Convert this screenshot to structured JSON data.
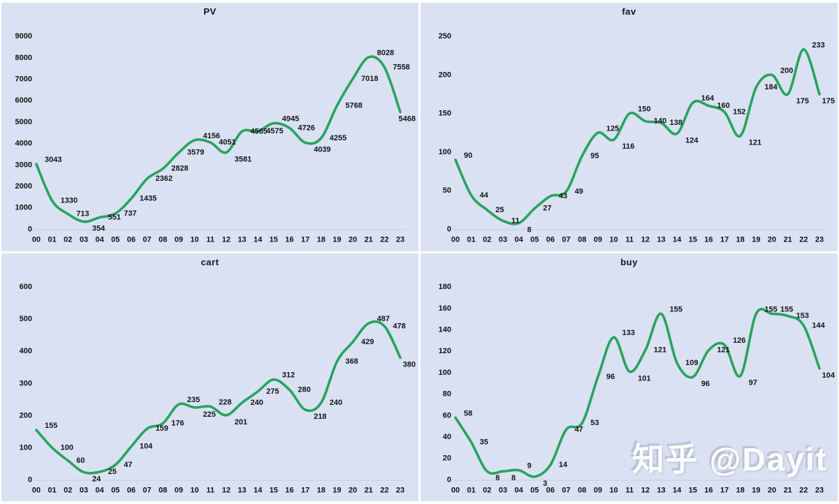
{
  "watermark": {
    "text": "知乎 @Dayit"
  },
  "colors": {
    "background": "#d9e1f2",
    "line": "#28a35f",
    "label": "#141414",
    "tick": "#111111",
    "axis": "#c3cbde",
    "divider": "#ffffff"
  },
  "chart_data": [
    {
      "id": "pv",
      "type": "line",
      "title": "PV",
      "categories": [
        "00",
        "01",
        "02",
        "03",
        "04",
        "05",
        "06",
        "07",
        "08",
        "09",
        "10",
        "11",
        "12",
        "13",
        "14",
        "15",
        "16",
        "17",
        "18",
        "19",
        "20",
        "21",
        "22",
        "23"
      ],
      "values": [
        3043,
        1330,
        713,
        354,
        551,
        737,
        1435,
        2362,
        2828,
        3579,
        4156,
        4051,
        3581,
        4565,
        4575,
        4945,
        4726,
        4039,
        4255,
        5768,
        7018,
        8028,
        7558,
        5468
      ],
      "xlabel": "",
      "ylabel": "",
      "ylim": [
        0,
        9000
      ],
      "yticks": [
        0,
        1000,
        2000,
        3000,
        4000,
        5000,
        6000,
        7000,
        8000,
        9000
      ],
      "grid": false,
      "legend": "none",
      "data_labels": true
    },
    {
      "id": "fav",
      "type": "line",
      "title": "fav",
      "categories": [
        "00",
        "01",
        "02",
        "03",
        "04",
        "05",
        "06",
        "07",
        "08",
        "09",
        "10",
        "11",
        "12",
        "13",
        "14",
        "15",
        "16",
        "17",
        "18",
        "19",
        "20",
        "21",
        "22",
        "23"
      ],
      "values": [
        90,
        44,
        25,
        11,
        8,
        27,
        43,
        49,
        95,
        125,
        116,
        150,
        140,
        138,
        124,
        164,
        160,
        152,
        121,
        184,
        200,
        175,
        233,
        175
      ],
      "xlabel": "",
      "ylabel": "",
      "ylim": [
        0,
        250
      ],
      "yticks": [
        0,
        50,
        100,
        150,
        200,
        250
      ],
      "grid": false,
      "legend": "none",
      "data_labels": true
    },
    {
      "id": "cart",
      "type": "line",
      "title": "cart",
      "categories": [
        "00",
        "01",
        "02",
        "03",
        "04",
        "05",
        "06",
        "07",
        "08",
        "09",
        "10",
        "11",
        "12",
        "13",
        "14",
        "15",
        "16",
        "17",
        "18",
        "19",
        "20",
        "21",
        "22",
        "23"
      ],
      "values": [
        155,
        100,
        60,
        24,
        25,
        47,
        104,
        159,
        176,
        235,
        225,
        228,
        201,
        240,
        275,
        312,
        280,
        218,
        240,
        368,
        429,
        487,
        478,
        380
      ],
      "xlabel": "",
      "ylabel": "",
      "ylim": [
        0,
        600
      ],
      "yticks": [
        0,
        100,
        200,
        300,
        400,
        500,
        600
      ],
      "grid": false,
      "legend": "none",
      "data_labels": true
    },
    {
      "id": "buy",
      "type": "line",
      "title": "buy",
      "categories": [
        "00",
        "01",
        "02",
        "03",
        "04",
        "05",
        "06",
        "07",
        "08",
        "09",
        "10",
        "11",
        "12",
        "13",
        "14",
        "15",
        "16",
        "17",
        "18",
        "19",
        "20",
        "21",
        "22",
        "23"
      ],
      "values": [
        58,
        35,
        8,
        8,
        9,
        3,
        14,
        47,
        53,
        96,
        133,
        101,
        121,
        155,
        109,
        96,
        121,
        126,
        97,
        155,
        155,
        153,
        144,
        104
      ],
      "xlabel": "",
      "ylabel": "",
      "ylim": [
        0,
        180
      ],
      "yticks": [
        0,
        20,
        40,
        60,
        80,
        100,
        120,
        140,
        160,
        180
      ],
      "grid": false,
      "legend": "none",
      "data_labels": true
    }
  ]
}
